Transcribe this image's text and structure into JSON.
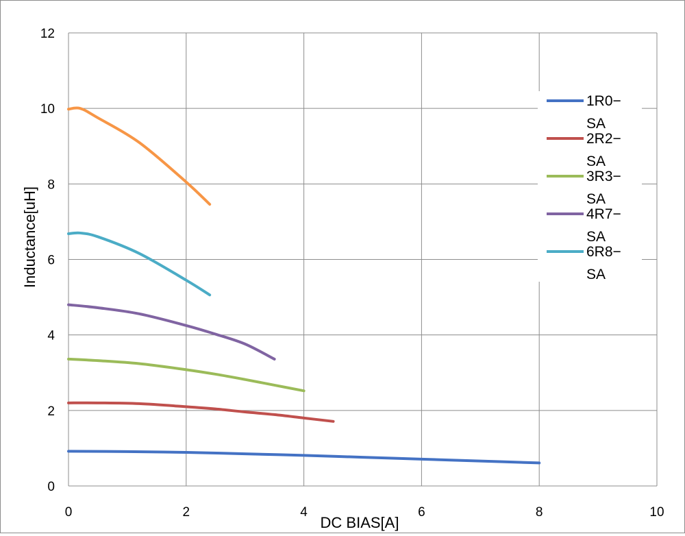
{
  "chart_data": {
    "type": "line",
    "title": "",
    "xlabel": "DC BIAS[A]",
    "ylabel": "Inductance[uH]",
    "xlim": [
      0,
      10
    ],
    "ylim": [
      0,
      12
    ],
    "xticks": [
      0,
      2,
      4,
      6,
      8,
      10
    ],
    "yticks": [
      0,
      2,
      4,
      6,
      8,
      10,
      12
    ],
    "x_tick_labels": [
      "0",
      "2",
      "4",
      "6",
      "8",
      "10"
    ],
    "y_tick_labels": [
      "0",
      "2",
      "4",
      "6",
      "8",
      "10",
      "12"
    ],
    "grid": true,
    "legend_position": "right",
    "series": [
      {
        "name": "1R0-SA",
        "legend_lines": [
          "1R0−",
          "SA"
        ],
        "color": "#4472c4",
        "x": [
          0,
          1,
          2,
          3,
          4,
          5,
          6,
          7,
          8
        ],
        "y": [
          0.92,
          0.91,
          0.89,
          0.85,
          0.81,
          0.76,
          0.71,
          0.66,
          0.61
        ]
      },
      {
        "name": "2R2-SA",
        "legend_lines": [
          "2R2−",
          "SA"
        ],
        "color": "#c0504d",
        "x": [
          0,
          0.5,
          1.2,
          2,
          2.5,
          3,
          3.5,
          4,
          4.5
        ],
        "y": [
          2.2,
          2.2,
          2.18,
          2.1,
          2.04,
          1.96,
          1.89,
          1.8,
          1.71
        ]
      },
      {
        "name": "3R3-SA",
        "legend_lines": [
          "3R3−",
          "SA"
        ],
        "color": "#9bbb59",
        "x": [
          0,
          0.5,
          1.2,
          2,
          2.5,
          3,
          3.5,
          4
        ],
        "y": [
          3.36,
          3.32,
          3.24,
          3.08,
          2.96,
          2.82,
          2.67,
          2.52
        ]
      },
      {
        "name": "4R7-SA",
        "legend_lines": [
          "4R7−",
          "SA"
        ],
        "color": "#8064a2",
        "x": [
          0,
          0.5,
          1.2,
          2,
          2.5,
          3,
          3.5
        ],
        "y": [
          4.8,
          4.72,
          4.56,
          4.25,
          4.02,
          3.76,
          3.36
        ]
      },
      {
        "name": "6R8-SA",
        "legend_lines": [
          "6R8−",
          "SA"
        ],
        "color": "#4bacc6",
        "x": [
          0,
          0.2,
          0.5,
          1.2,
          2,
          2.4
        ],
        "y": [
          6.68,
          6.7,
          6.6,
          6.16,
          5.45,
          5.06
        ]
      },
      {
        "name": "",
        "legend_lines": [],
        "color": "#f79646",
        "x": [
          0,
          0.2,
          0.5,
          1.2,
          2,
          2.4
        ],
        "y": [
          9.98,
          10.0,
          9.75,
          9.1,
          8.05,
          7.46
        ]
      }
    ]
  }
}
